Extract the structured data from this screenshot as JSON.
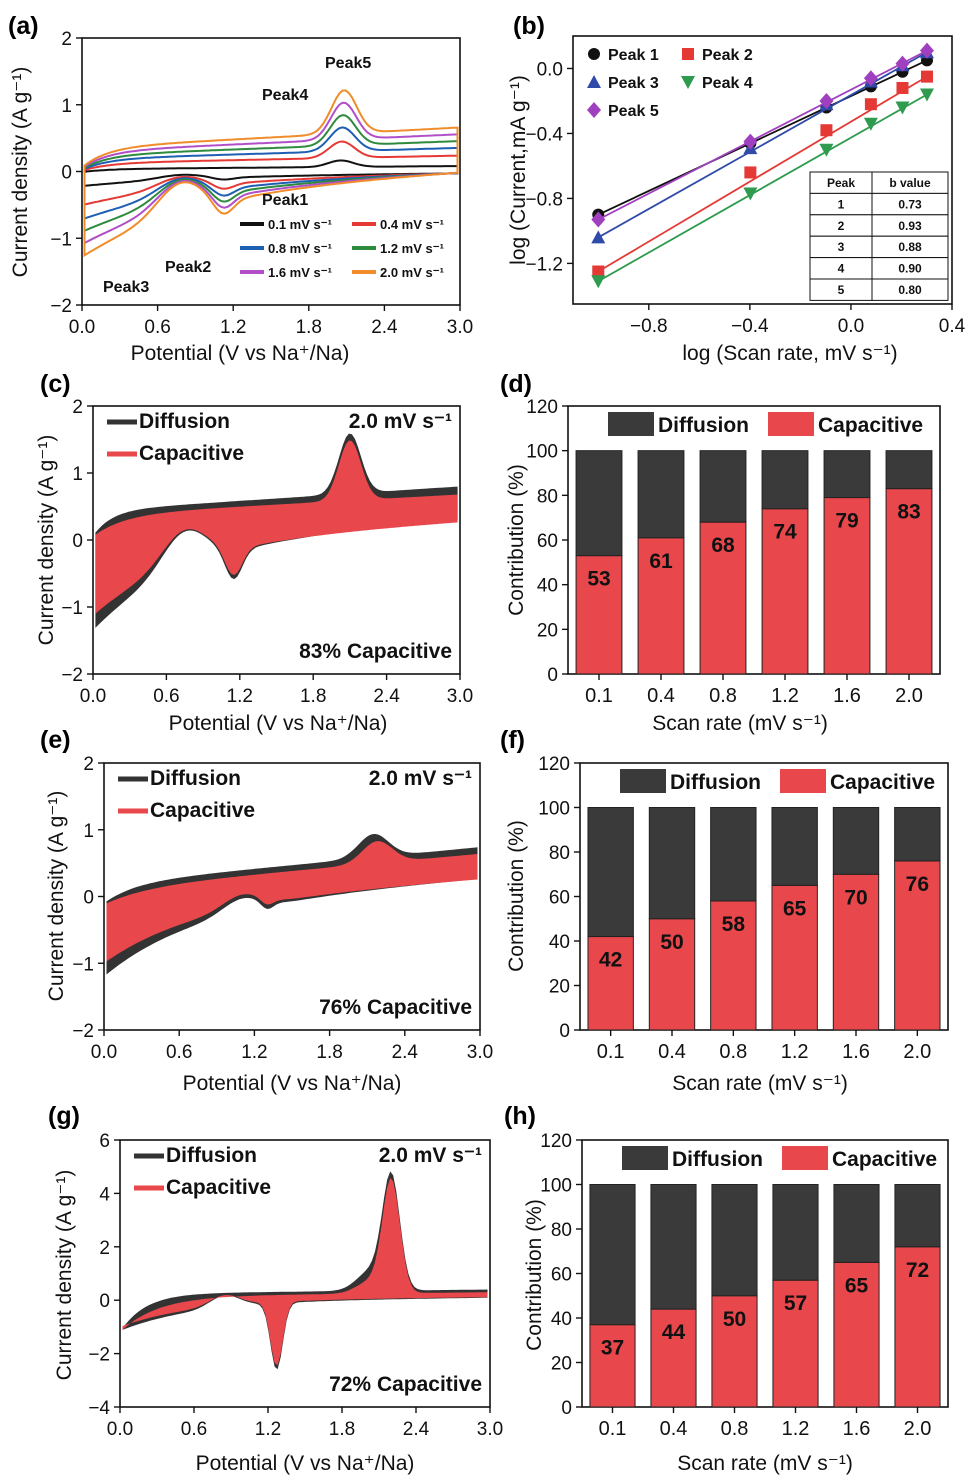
{
  "chart_data": [
    {
      "panel": "(a)",
      "type": "line",
      "xlabel": "Potential (V vs Na⁺/Na)",
      "ylabel": "Current density (A g⁻¹)",
      "xlim": [
        0.0,
        3.0
      ],
      "ylim": [
        -2,
        2
      ],
      "xticks": [
        "0.0",
        "0.6",
        "1.2",
        "1.8",
        "2.4",
        "3.0"
      ],
      "yticks": [
        "−2",
        "−1",
        "0",
        "1",
        "2"
      ],
      "legend": "bottom-right",
      "series": [
        {
          "name": "0.1 mV s⁻¹",
          "color": "#111111",
          "scale": 0.15
        },
        {
          "name": "0.4 mV s⁻¹",
          "color": "#e53935",
          "scale": 0.38
        },
        {
          "name": "0.8 mV s⁻¹",
          "color": "#1e5fb4",
          "scale": 0.55
        },
        {
          "name": "1.2 mV s⁻¹",
          "color": "#2e8b3e",
          "scale": 0.7
        },
        {
          "name": "1.6 mV s⁻¹",
          "color": "#b04fc8",
          "scale": 0.85
        },
        {
          "name": "2.0 mV s⁻¹",
          "color": "#f08c2a",
          "scale": 1.0
        }
      ],
      "annotations": [
        {
          "text": "Peak1",
          "color": "#000000"
        },
        {
          "text": "Peak2",
          "color": "#e53935"
        },
        {
          "text": "Peak3",
          "color": "#2f4aa8"
        },
        {
          "text": "Peak4",
          "color": "#2e9b4e"
        },
        {
          "text": "Peak5",
          "color": "#a040c0"
        }
      ]
    },
    {
      "panel": "(b)",
      "type": "scatter",
      "xlabel": "log (Scan rate, mV s⁻¹)",
      "ylabel": "log (Current,mA g⁻¹)",
      "xlim": [
        -1.1,
        0.4
      ],
      "ylim": [
        -1.45,
        0.2
      ],
      "xticks": [
        "−0.8",
        "−0.4",
        "0.0",
        "0.4"
      ],
      "yticks": [
        "0.0",
        "−0.4",
        "−0.8",
        "−1.2"
      ],
      "x": [
        -1.0,
        -0.398,
        -0.097,
        0.079,
        0.204,
        0.301
      ],
      "series": [
        {
          "name": "Peak 1",
          "color": "#111111",
          "marker": "circle",
          "values": [
            -0.9,
            -0.46,
            -0.24,
            -0.11,
            -0.02,
            0.05
          ]
        },
        {
          "name": "Peak 2",
          "color": "#e53935",
          "marker": "square",
          "values": [
            -1.25,
            -0.64,
            -0.38,
            -0.22,
            -0.12,
            -0.05
          ]
        },
        {
          "name": "Peak 3",
          "color": "#2f4aa8",
          "marker": "triangle-up",
          "values": [
            -1.04,
            -0.49,
            -0.22,
            -0.08,
            0.02,
            0.1
          ]
        },
        {
          "name": "Peak 4",
          "color": "#2e9b4e",
          "marker": "triangle-down",
          "values": [
            -1.31,
            -0.77,
            -0.5,
            -0.34,
            -0.24,
            -0.16
          ]
        },
        {
          "name": "Peak 5",
          "color": "#a040c0",
          "marker": "diamond",
          "values": [
            -0.93,
            -0.45,
            -0.2,
            -0.06,
            0.03,
            0.11
          ]
        }
      ],
      "table": {
        "headers": [
          "Peak",
          "b value"
        ],
        "rows": [
          [
            "1",
            "0.73"
          ],
          [
            "2",
            "0.93"
          ],
          [
            "3",
            "0.88"
          ],
          [
            "4",
            "0.90"
          ],
          [
            "5",
            "0.80"
          ]
        ]
      }
    },
    {
      "panel": "(c)",
      "type": "area",
      "xlabel": "Potential (V vs Na⁺/Na)",
      "ylabel": "Current density (A g⁻¹)",
      "xlim": [
        0.0,
        3.0
      ],
      "ylim": [
        -2,
        2
      ],
      "xticks": [
        "0.0",
        "0.6",
        "1.2",
        "1.8",
        "2.4",
        "3.0"
      ],
      "yticks": [
        "−2",
        "−1",
        "0",
        "1",
        "2"
      ],
      "series": [
        {
          "name": "Diffusion",
          "color": "#333333"
        },
        {
          "name": "Capacitive",
          "color": "#e8474b"
        }
      ],
      "rate_label": "2.0 mV s⁻¹",
      "annotation": "83% Capacitive"
    },
    {
      "panel": "(d)",
      "type": "bar",
      "xlabel": "Scan rate (mV s⁻¹)",
      "ylabel": "Contribution (%)",
      "ylim": [
        0,
        120
      ],
      "yticks": [
        "0",
        "20",
        "40",
        "60",
        "80",
        "100",
        "120"
      ],
      "categories": [
        "0.1",
        "0.4",
        "0.8",
        "1.2",
        "1.6",
        "2.0"
      ],
      "series": [
        {
          "name": "Capacitive",
          "color": "#e8474b",
          "values": [
            53,
            61,
            68,
            74,
            79,
            83
          ]
        },
        {
          "name": "Diffusion",
          "color": "#3a3a3a",
          "values": [
            47,
            39,
            32,
            26,
            21,
            17
          ]
        }
      ]
    },
    {
      "panel": "(e)",
      "type": "area",
      "xlabel": "Potential (V vs Na⁺/Na)",
      "ylabel": "Current density (A g⁻¹)",
      "xlim": [
        0.0,
        3.0
      ],
      "ylim": [
        -2,
        2
      ],
      "xticks": [
        "0.0",
        "0.6",
        "1.2",
        "1.8",
        "2.4",
        "3.0"
      ],
      "yticks": [
        "−2",
        "−1",
        "0",
        "1",
        "2"
      ],
      "series": [
        {
          "name": "Diffusion",
          "color": "#333333"
        },
        {
          "name": "Capacitive",
          "color": "#e8474b"
        }
      ],
      "rate_label": "2.0 mV s⁻¹",
      "annotation": "76% Capacitive"
    },
    {
      "panel": "(f)",
      "type": "bar",
      "xlabel": "Scan rate (mV s⁻¹)",
      "ylabel": "Contribution (%)",
      "ylim": [
        0,
        120
      ],
      "yticks": [
        "0",
        "20",
        "40",
        "60",
        "80",
        "100",
        "120"
      ],
      "categories": [
        "0.1",
        "0.4",
        "0.8",
        "1.2",
        "1.6",
        "2.0"
      ],
      "series": [
        {
          "name": "Capacitive",
          "color": "#e8474b",
          "values": [
            42,
            50,
            58,
            65,
            70,
            76
          ]
        },
        {
          "name": "Diffusion",
          "color": "#3a3a3a",
          "values": [
            58,
            50,
            42,
            35,
            30,
            24
          ]
        }
      ]
    },
    {
      "panel": "(g)",
      "type": "area",
      "xlabel": "Potential (V vs Na⁺/Na)",
      "ylabel": "Current density (A g⁻¹)",
      "xlim": [
        0.0,
        3.0
      ],
      "ylim": [
        -4,
        6
      ],
      "xticks": [
        "0.0",
        "0.6",
        "1.2",
        "1.8",
        "2.4",
        "3.0"
      ],
      "yticks": [
        "−4",
        "−2",
        "0",
        "2",
        "4",
        "6"
      ],
      "series": [
        {
          "name": "Diffusion",
          "color": "#333333"
        },
        {
          "name": "Capacitive",
          "color": "#e8474b"
        }
      ],
      "rate_label": "2.0 mV s⁻¹",
      "annotation": "72% Capacitive"
    },
    {
      "panel": "(h)",
      "type": "bar",
      "xlabel": "Scan rate (mV s⁻¹)",
      "ylabel": "Contribution (%)",
      "ylim": [
        0,
        120
      ],
      "yticks": [
        "0",
        "20",
        "40",
        "60",
        "80",
        "100",
        "120"
      ],
      "categories": [
        "0.1",
        "0.4",
        "0.8",
        "1.2",
        "1.6",
        "2.0"
      ],
      "series": [
        {
          "name": "Capacitive",
          "color": "#e8474b",
          "values": [
            37,
            44,
            50,
            57,
            65,
            72
          ]
        },
        {
          "name": "Diffusion",
          "color": "#3a3a3a",
          "values": [
            63,
            56,
            50,
            43,
            35,
            28
          ]
        }
      ]
    }
  ]
}
